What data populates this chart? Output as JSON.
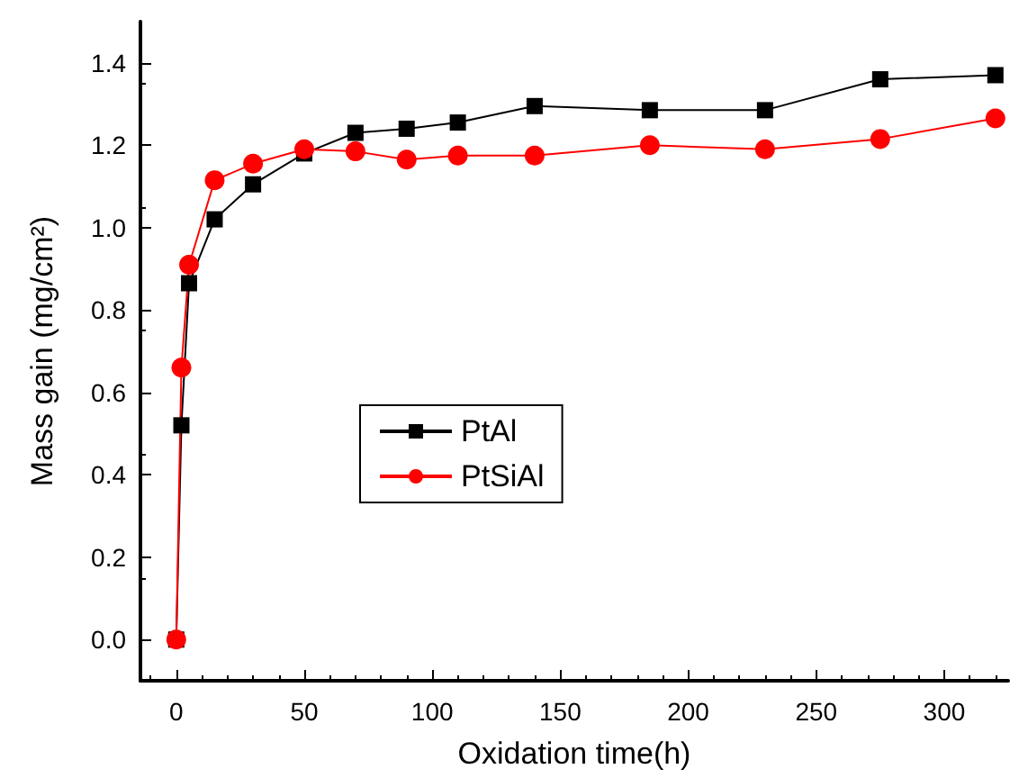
{
  "chart_data": {
    "type": "line",
    "xlabel": "Oxidation time(h)",
    "ylabel": "Mass gain (mg/cm²)",
    "x": [
      0,
      2,
      5,
      15,
      30,
      50,
      70,
      90,
      110,
      140,
      185,
      230,
      275,
      320
    ],
    "series": [
      {
        "name": "PtAl",
        "color": "#000000",
        "marker": "square",
        "values": [
          0,
          0.52,
          0.865,
          1.02,
          1.105,
          1.18,
          1.23,
          1.24,
          1.255,
          1.295,
          1.285,
          1.285,
          1.36,
          1.37
        ]
      },
      {
        "name": "PtSiAl",
        "color": "#ff0000",
        "marker": "circle",
        "values": [
          0,
          0.66,
          0.91,
          1.115,
          1.155,
          1.19,
          1.185,
          1.165,
          1.175,
          1.175,
          1.2,
          1.19,
          1.215,
          1.265
        ]
      }
    ],
    "xlim": [
      -14,
      325
    ],
    "xticks": [
      0,
      50,
      100,
      150,
      200,
      250,
      300
    ],
    "ylim": [
      -0.1,
      1.5
    ],
    "yticks": [
      {
        "value": 0,
        "label": "0.0"
      },
      0.2,
      0.4,
      0.6,
      0.8,
      {
        "value": 1,
        "label": "1.0"
      },
      1.2,
      1.4
    ],
    "grid": false,
    "legend": "left",
    "line_style": "solid"
  }
}
